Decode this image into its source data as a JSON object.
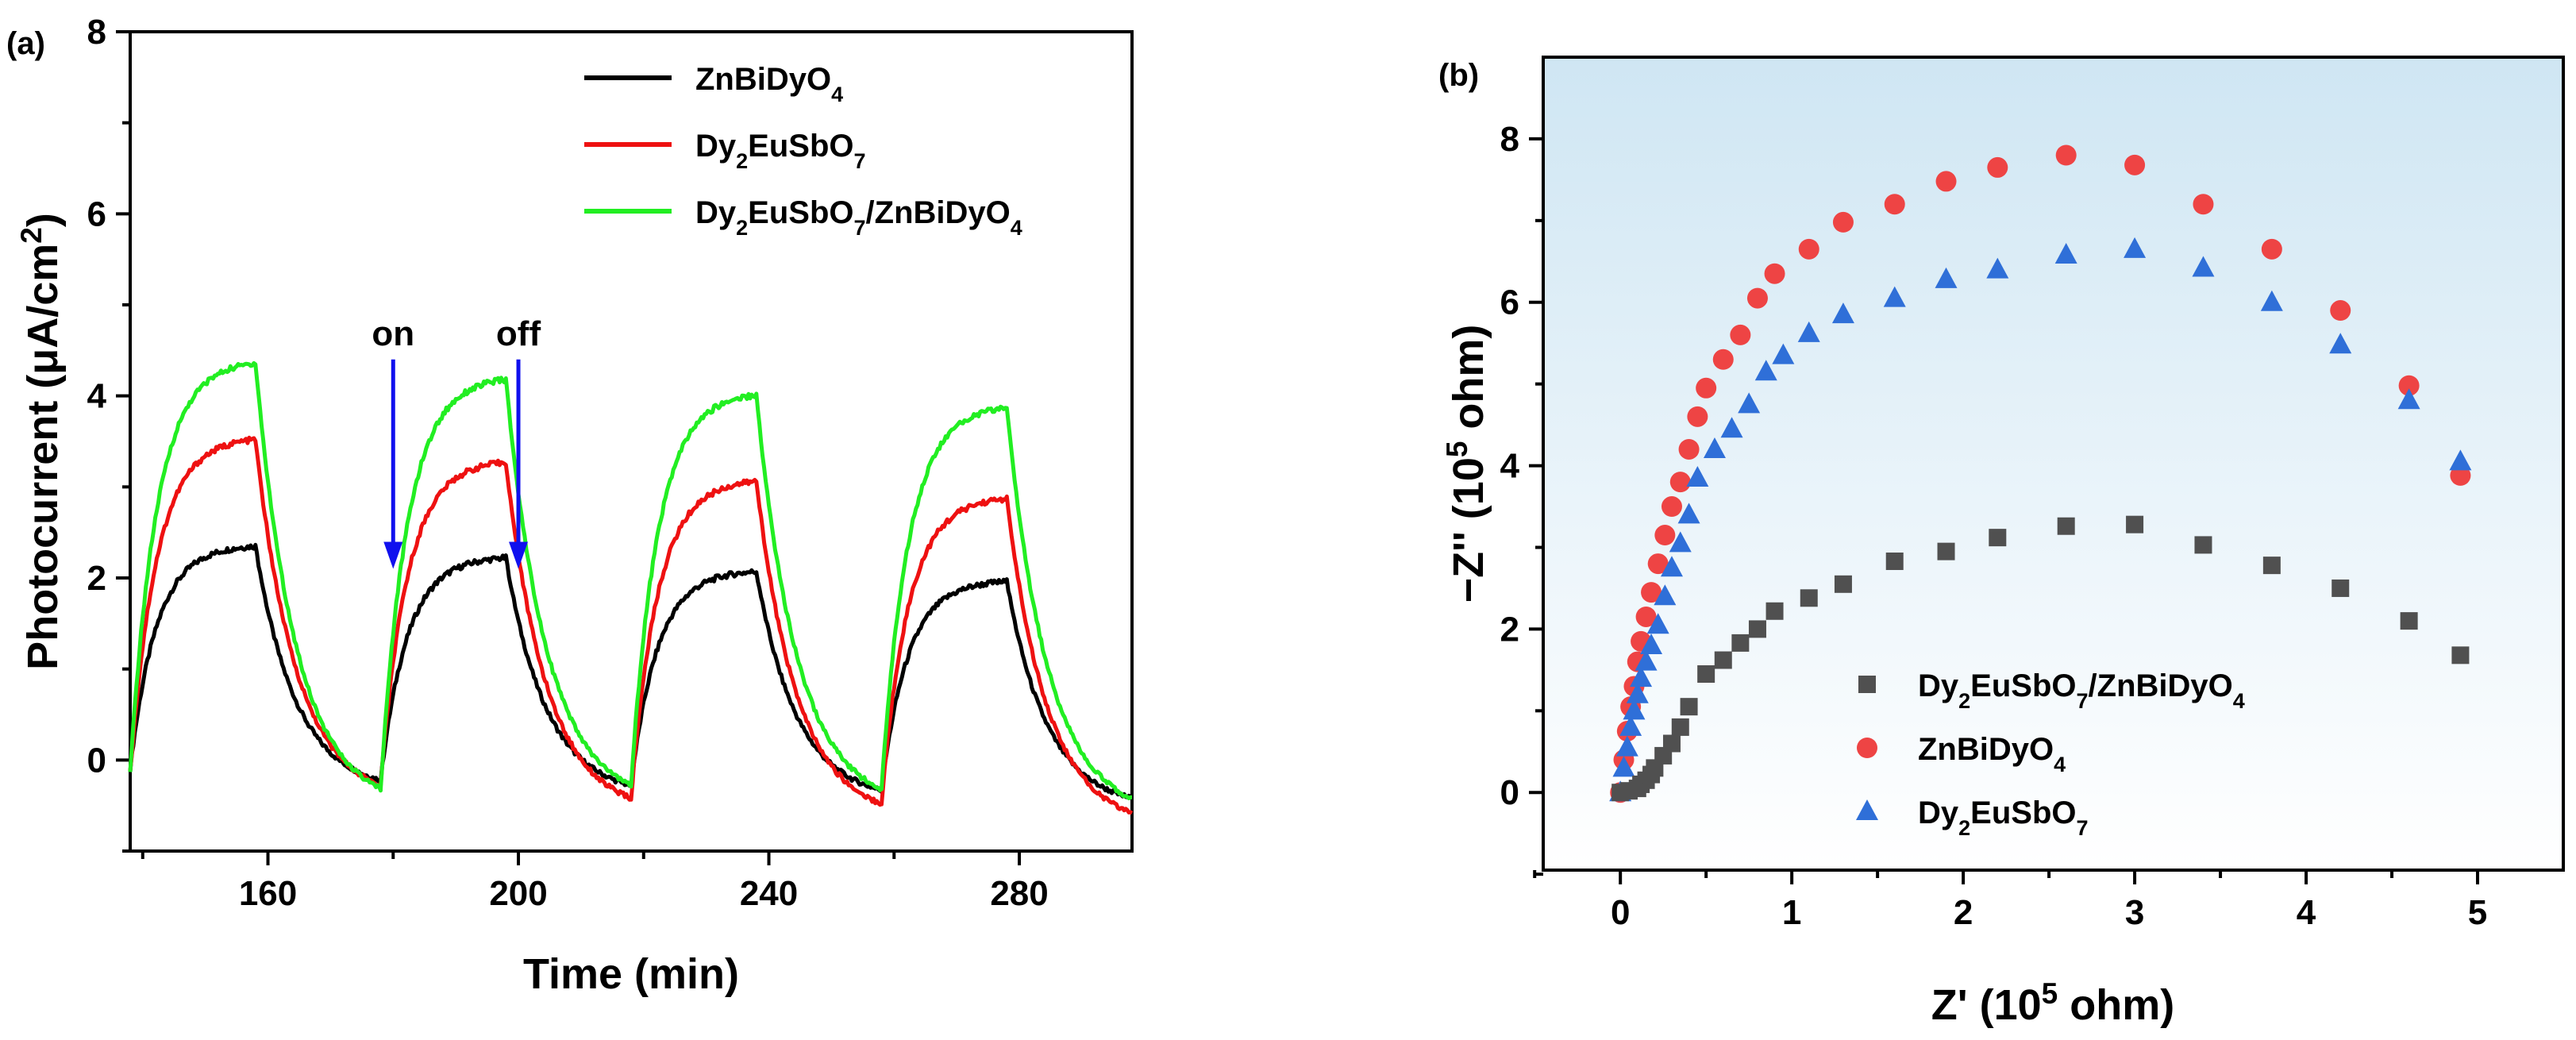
{
  "chart_data": [
    {
      "panel_label": "(a)",
      "type": "line",
      "xlabel": "Time (min)",
      "ylabel_parts": [
        "Photocurrent (μA/cm",
        "2",
        ")"
      ],
      "xlim": [
        138,
        298
      ],
      "ylim": [
        -1,
        8
      ],
      "xticks": [
        160,
        200,
        240,
        280
      ],
      "yticks": [
        0,
        2,
        4,
        6,
        8
      ],
      "legend_position": "top-right",
      "annotations": [
        {
          "text": "on",
          "x": 180,
          "y_from": 4.4,
          "y_to": 2.1,
          "color": "#1010ee"
        },
        {
          "text": "off",
          "x": 200,
          "y_from": 4.4,
          "y_to": 2.1,
          "color": "#1010ee"
        }
      ],
      "cycle": {
        "start": 138,
        "period": 40,
        "on_duration": 20,
        "count": 4
      },
      "series": [
        {
          "name_parts": [
            [
              "ZnBiDyO",
              "n"
            ],
            [
              "4",
              "sub"
            ]
          ],
          "color": "#000000",
          "peaks": [
            2.35,
            2.22,
            2.07,
            1.96
          ],
          "lows": [
            -0.22,
            -0.28,
            -0.33,
            -0.42
          ],
          "start": -0.1
        },
        {
          "name_parts": [
            [
              "Dy",
              "n"
            ],
            [
              "2",
              "sub"
            ],
            [
              "EuSbO",
              "n"
            ],
            [
              "7",
              "sub"
            ]
          ],
          "color": "#ee1111",
          "peaks": [
            3.52,
            3.27,
            3.06,
            2.87
          ],
          "lows": [
            -0.28,
            -0.42,
            -0.48,
            -0.58
          ],
          "start": -0.15
        },
        {
          "name_parts": [
            [
              "Dy",
              "n"
            ],
            [
              "2",
              "sub"
            ],
            [
              "EuSbO",
              "n"
            ],
            [
              "7",
              "sub"
            ],
            [
              "/ZnBiDyO",
              "n"
            ],
            [
              "4",
              "sub"
            ]
          ],
          "color": "#22ee22",
          "peaks": [
            4.36,
            4.18,
            4.01,
            3.87
          ],
          "lows": [
            -0.32,
            -0.28,
            -0.32,
            -0.42
          ],
          "start": -0.15
        }
      ]
    },
    {
      "panel_label": "(b)",
      "type": "scatter",
      "xlabel_parts": [
        "Z' (10",
        "5",
        " ohm)"
      ],
      "ylabel_parts": [
        "−Z'' (10",
        "5",
        " ohm)"
      ],
      "xlim": [
        -0.45,
        5.5
      ],
      "ylim": [
        -0.95,
        9.0
      ],
      "xticks": [
        0,
        1,
        2,
        3,
        4,
        5
      ],
      "yticks": [
        0,
        2,
        4,
        6,
        8
      ],
      "background": "gradient light blue",
      "legend_position": "bottom-center",
      "series": [
        {
          "name_parts": [
            [
              "Dy",
              "n"
            ],
            [
              "2",
              "sub"
            ],
            [
              "EuSbO",
              "n"
            ],
            [
              "7",
              "sub"
            ],
            [
              "/ZnBiDyO",
              "n"
            ],
            [
              "4",
              "sub"
            ]
          ],
          "marker": "square",
          "color": "#505050",
          "x": [
            0.0,
            0.05,
            0.1,
            0.12,
            0.15,
            0.18,
            0.2,
            0.25,
            0.3,
            0.35,
            0.4,
            0.5,
            0.6,
            0.7,
            0.8,
            0.9,
            1.1,
            1.3,
            1.6,
            1.9,
            2.2,
            2.6,
            3.0,
            3.4,
            3.8,
            4.2,
            4.6,
            4.9
          ],
          "y": [
            0.0,
            0.02,
            0.05,
            0.1,
            0.15,
            0.22,
            0.3,
            0.45,
            0.6,
            0.8,
            1.05,
            1.45,
            1.62,
            1.83,
            2.0,
            2.22,
            2.38,
            2.55,
            2.83,
            2.95,
            3.12,
            3.26,
            3.28,
            3.03,
            2.78,
            2.5,
            2.1,
            1.68
          ]
        },
        {
          "name_parts": [
            [
              "ZnBiDyO",
              "n"
            ],
            [
              "4",
              "sub"
            ]
          ],
          "marker": "circle",
          "color": "#ee4444",
          "x": [
            0.0,
            0.02,
            0.04,
            0.06,
            0.08,
            0.1,
            0.12,
            0.15,
            0.18,
            0.22,
            0.26,
            0.3,
            0.35,
            0.4,
            0.45,
            0.5,
            0.6,
            0.7,
            0.8,
            0.9,
            1.1,
            1.3,
            1.6,
            1.9,
            2.2,
            2.6,
            3.0,
            3.4,
            3.8,
            4.2,
            4.6,
            4.9
          ],
          "y": [
            0.0,
            0.4,
            0.75,
            1.05,
            1.3,
            1.6,
            1.85,
            2.15,
            2.45,
            2.8,
            3.15,
            3.5,
            3.8,
            4.2,
            4.6,
            4.95,
            5.3,
            5.6,
            6.05,
            6.35,
            6.65,
            6.98,
            7.2,
            7.48,
            7.65,
            7.8,
            7.68,
            7.2,
            6.65,
            5.9,
            4.98,
            3.88
          ]
        },
        {
          "name_parts": [
            [
              "Dy",
              "n"
            ],
            [
              "2",
              "sub"
            ],
            [
              "EuSbO",
              "n"
            ],
            [
              "7",
              "sub"
            ]
          ],
          "marker": "triangle",
          "color": "#2f6fd8",
          "x": [
            0.0,
            0.02,
            0.04,
            0.06,
            0.08,
            0.1,
            0.12,
            0.15,
            0.18,
            0.22,
            0.26,
            0.3,
            0.35,
            0.4,
            0.45,
            0.55,
            0.65,
            0.75,
            0.85,
            0.95,
            1.1,
            1.3,
            1.6,
            1.9,
            2.2,
            2.6,
            3.0,
            3.4,
            3.8,
            4.2,
            4.6,
            4.9
          ],
          "y": [
            0.0,
            0.3,
            0.55,
            0.8,
            1.0,
            1.2,
            1.4,
            1.6,
            1.8,
            2.05,
            2.4,
            2.75,
            3.05,
            3.4,
            3.85,
            4.2,
            4.45,
            4.75,
            5.15,
            5.35,
            5.62,
            5.85,
            6.05,
            6.28,
            6.4,
            6.58,
            6.65,
            6.42,
            6.0,
            5.48,
            4.8,
            4.05
          ]
        }
      ]
    }
  ]
}
